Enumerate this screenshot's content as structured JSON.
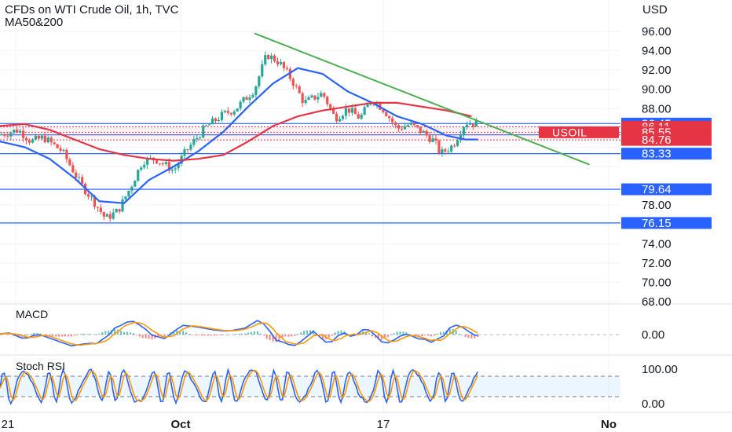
{
  "header": {
    "title": "CFDs on WTI Crude Oil, 1h, TVC",
    "indicator": "MA50&200",
    "currency": "USD"
  },
  "panes": {
    "macd_label": "MACD",
    "stoch_label": "Stoch RSI"
  },
  "colors": {
    "blue": "#2962ff",
    "red": "#e53545",
    "green": "#4caf50",
    "up": "#26a69a",
    "down": "#ef5350",
    "orange": "#ff9800"
  },
  "chart_data": {
    "type": "candlestick",
    "title": "CFDs on WTI Crude Oil, 1h, TVC",
    "y_unit": "USD",
    "ylim": [
      67.5,
      97.0
    ],
    "y_ticks": [
      "96.00",
      "94.00",
      "92.00",
      "90.00",
      "88.00",
      "78.00",
      "74.00",
      "72.00",
      "70.00",
      "68.00"
    ],
    "x_ticks": [
      "21",
      "Oct",
      "17",
      "No"
    ],
    "price_path": [
      {
        "t": 0,
        "p": 85.3
      },
      {
        "t": 3,
        "p": 85.8
      },
      {
        "t": 5,
        "p": 84.6
      },
      {
        "t": 7,
        "p": 85.0
      },
      {
        "t": 10,
        "p": 83.6
      },
      {
        "t": 13,
        "p": 80.2
      },
      {
        "t": 15,
        "p": 78.5
      },
      {
        "t": 17,
        "p": 76.6
      },
      {
        "t": 19,
        "p": 77.4
      },
      {
        "t": 21,
        "p": 79.8
      },
      {
        "t": 23,
        "p": 82.6
      },
      {
        "t": 25,
        "p": 82.8
      },
      {
        "t": 28,
        "p": 81.6
      },
      {
        "t": 30,
        "p": 83.6
      },
      {
        "t": 33,
        "p": 86.0
      },
      {
        "t": 36,
        "p": 87.4
      },
      {
        "t": 38,
        "p": 88.0
      },
      {
        "t": 41,
        "p": 90.0
      },
      {
        "t": 43,
        "p": 93.6
      },
      {
        "t": 45,
        "p": 92.8
      },
      {
        "t": 47,
        "p": 91.0
      },
      {
        "t": 49,
        "p": 88.6
      },
      {
        "t": 52,
        "p": 89.6
      },
      {
        "t": 54,
        "p": 87.0
      },
      {
        "t": 56,
        "p": 88.0
      },
      {
        "t": 58,
        "p": 87.0
      },
      {
        "t": 60,
        "p": 89.0
      },
      {
        "t": 62,
        "p": 87.8
      },
      {
        "t": 64,
        "p": 85.9
      },
      {
        "t": 66,
        "p": 86.4
      },
      {
        "t": 68,
        "p": 85.6
      },
      {
        "t": 70,
        "p": 84.6
      },
      {
        "t": 71,
        "p": 83.3
      },
      {
        "t": 73,
        "p": 84.2
      },
      {
        "t": 75,
        "p": 86.6
      },
      {
        "t": 77,
        "p": 86.4
      }
    ],
    "moving_averages": [
      {
        "name": "MA50",
        "color": "#2962ff",
        "points": [
          {
            "t": 0,
            "p": 84.6
          },
          {
            "t": 4,
            "p": 84.0
          },
          {
            "t": 8,
            "p": 82.8
          },
          {
            "t": 12,
            "p": 80.8
          },
          {
            "t": 16,
            "p": 78.4
          },
          {
            "t": 20,
            "p": 78.2
          },
          {
            "t": 24,
            "p": 80.6
          },
          {
            "t": 28,
            "p": 82.0
          },
          {
            "t": 32,
            "p": 83.6
          },
          {
            "t": 36,
            "p": 85.6
          },
          {
            "t": 40,
            "p": 88.2
          },
          {
            "t": 44,
            "p": 90.6
          },
          {
            "t": 48,
            "p": 92.2
          },
          {
            "t": 52,
            "p": 91.6
          },
          {
            "t": 56,
            "p": 89.8
          },
          {
            "t": 60,
            "p": 88.6
          },
          {
            "t": 64,
            "p": 87.2
          },
          {
            "t": 68,
            "p": 86.4
          },
          {
            "t": 72,
            "p": 85.2
          },
          {
            "t": 75,
            "p": 84.8
          },
          {
            "t": 77,
            "p": 84.8
          }
        ]
      },
      {
        "name": "MA200",
        "color": "#e53545",
        "points": [
          {
            "t": 0,
            "p": 86.2
          },
          {
            "t": 4,
            "p": 86.4
          },
          {
            "t": 8,
            "p": 85.8
          },
          {
            "t": 12,
            "p": 84.8
          },
          {
            "t": 16,
            "p": 83.8
          },
          {
            "t": 20,
            "p": 83.2
          },
          {
            "t": 24,
            "p": 82.8
          },
          {
            "t": 28,
            "p": 82.6
          },
          {
            "t": 32,
            "p": 82.8
          },
          {
            "t": 36,
            "p": 83.2
          },
          {
            "t": 40,
            "p": 84.6
          },
          {
            "t": 44,
            "p": 86.2
          },
          {
            "t": 48,
            "p": 87.2
          },
          {
            "t": 52,
            "p": 87.8
          },
          {
            "t": 56,
            "p": 88.2
          },
          {
            "t": 60,
            "p": 88.6
          },
          {
            "t": 64,
            "p": 88.6
          },
          {
            "t": 68,
            "p": 88.2
          },
          {
            "t": 72,
            "p": 87.8
          },
          {
            "t": 76,
            "p": 87.2
          }
        ]
      }
    ],
    "trendline": {
      "color": "#4caf50",
      "from": {
        "t": 41,
        "p": 95.8
      },
      "to": {
        "t": 95,
        "p": 82.2
      }
    },
    "horizontal_levels": [
      {
        "value": "86.45",
        "color": "#2962ff"
      },
      {
        "value": "85.28",
        "color": "#2962ff"
      },
      {
        "value": "83.33",
        "color": "#2962ff"
      },
      {
        "value": "79.64",
        "color": "#2962ff"
      },
      {
        "value": "76.15",
        "color": "#2962ff"
      }
    ],
    "price_labels": [
      {
        "value": "86.11",
        "color": "#e53545"
      },
      {
        "value": "85.55",
        "color": "#e53545"
      },
      {
        "value": "84.76",
        "color": "#e53545"
      }
    ],
    "symbol_label": "USOIL",
    "macd": {
      "label": "MACD",
      "ytick": "0.00"
    },
    "stoch_rsi": {
      "label": "Stoch RSI",
      "yticks": [
        "100.00",
        "0.00"
      ]
    }
  }
}
